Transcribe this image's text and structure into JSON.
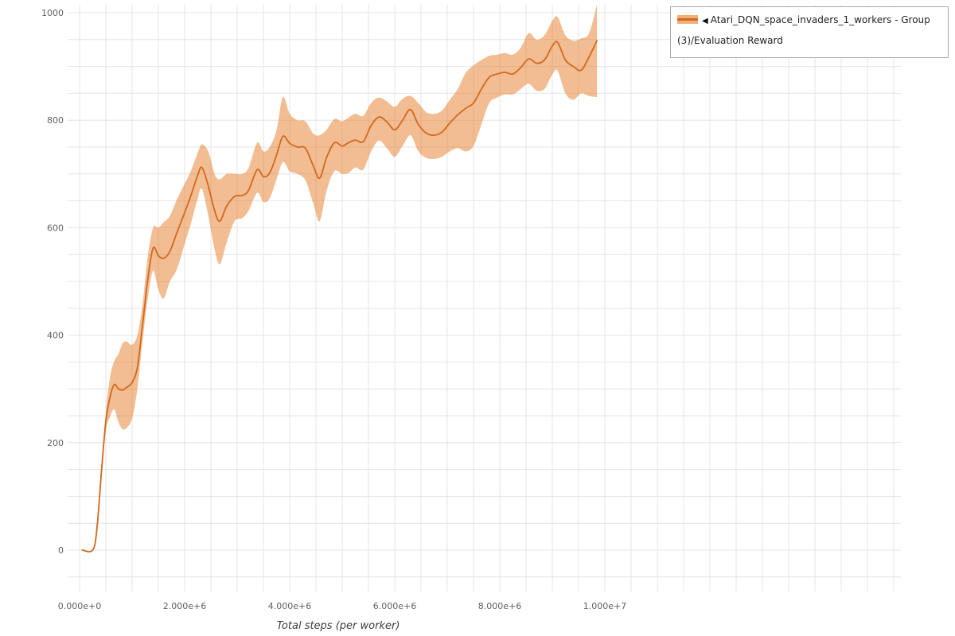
{
  "legend": {
    "collapse_marker": "◀",
    "series_label": "Atari_DQN_space_invaders_1_workers - Group(3)/Evaluation Reward"
  },
  "axes": {
    "x_title": "Total steps (per worker)"
  },
  "chart_data": {
    "type": "line",
    "title": "",
    "xlabel": "Total steps (per worker)",
    "ylabel": "",
    "grid": true,
    "grid_color": "#e4e4e4",
    "tick_color": "#5f5f5f",
    "legend_position": "top-right",
    "x_range_millions": [
      0,
      10
    ],
    "ylim": [
      0,
      1000
    ],
    "x_ticks": {
      "values_millions": [
        0,
        2,
        4,
        6,
        8,
        10
      ],
      "labels": [
        "0.000e+0",
        "2.000e+6",
        "4.000e+6",
        "6.000e+6",
        "8.000e+6",
        "1.000e+7"
      ]
    },
    "y_ticks": {
      "values": [
        0,
        200,
        400,
        600,
        800,
        1000
      ],
      "labels": [
        "0",
        "200",
        "400",
        "600",
        "800",
        "1000"
      ]
    },
    "series": [
      {
        "name": "Atari_DQN_space_invaders_1_workers - Group(3)/Evaluation Reward",
        "color": "#d2691e",
        "band_color": "#e57b25",
        "band_opacity": 0.5,
        "x_millions": [
          0.05,
          0.25,
          0.33,
          0.42,
          0.5,
          0.58,
          0.66,
          0.74,
          0.82,
          0.9,
          1.0,
          1.1,
          1.2,
          1.3,
          1.4,
          1.5,
          1.6,
          1.72,
          1.85,
          2.0,
          2.12,
          2.25,
          2.33,
          2.45,
          2.57,
          2.67,
          2.8,
          2.95,
          3.1,
          3.22,
          3.38,
          3.5,
          3.62,
          3.75,
          3.87,
          4.0,
          4.15,
          4.3,
          4.45,
          4.57,
          4.7,
          4.85,
          5.0,
          5.12,
          5.25,
          5.4,
          5.55,
          5.7,
          5.85,
          6.0,
          6.15,
          6.3,
          6.45,
          6.6,
          6.75,
          6.9,
          7.05,
          7.2,
          7.35,
          7.5,
          7.65,
          7.8,
          7.95,
          8.1,
          8.25,
          8.4,
          8.55,
          8.7,
          8.85,
          9.0,
          9.1,
          9.25,
          9.4,
          9.55,
          9.7,
          9.85
        ],
        "mean": [
          0,
          0,
          40,
          150,
          240,
          285,
          308,
          300,
          298,
          303,
          312,
          340,
          420,
          505,
          562,
          548,
          543,
          556,
          590,
          628,
          660,
          698,
          712,
          678,
          632,
          612,
          640,
          658,
          660,
          670,
          708,
          695,
          702,
          735,
          770,
          757,
          750,
          748,
          715,
          692,
          730,
          758,
          752,
          758,
          763,
          760,
          790,
          806,
          797,
          782,
          800,
          820,
          792,
          776,
          772,
          778,
          795,
          810,
          822,
          832,
          858,
          880,
          886,
          889,
          886,
          898,
          914,
          906,
          912,
          938,
          945,
          912,
          900,
          893,
          918,
          948
        ],
        "band_low": [
          0,
          0,
          30,
          135,
          222,
          248,
          262,
          238,
          225,
          228,
          245,
          300,
          390,
          470,
          520,
          485,
          468,
          500,
          522,
          570,
          608,
          655,
          672,
          622,
          560,
          532,
          572,
          612,
          618,
          632,
          665,
          648,
          655,
          690,
          722,
          705,
          700,
          688,
          645,
          612,
          668,
          705,
          700,
          702,
          712,
          708,
          742,
          762,
          748,
          732,
          752,
          772,
          742,
          730,
          728,
          732,
          742,
          748,
          742,
          752,
          792,
          832,
          842,
          848,
          848,
          858,
          868,
          855,
          858,
          885,
          892,
          850,
          838,
          850,
          845,
          843
        ],
        "band_high": [
          0,
          0,
          52,
          165,
          258,
          322,
          352,
          365,
          385,
          388,
          382,
          400,
          458,
          548,
          600,
          600,
          610,
          622,
          652,
          682,
          706,
          740,
          755,
          742,
          700,
          690,
          700,
          700,
          700,
          712,
          758,
          742,
          750,
          782,
          843,
          812,
          800,
          798,
          775,
          772,
          782,
          802,
          798,
          805,
          812,
          808,
          832,
          842,
          835,
          825,
          840,
          845,
          832,
          815,
          812,
          818,
          838,
          858,
          888,
          902,
          912,
          920,
          922,
          925,
          922,
          935,
          962,
          950,
          958,
          985,
          992,
          958,
          948,
          952,
          962,
          1015
        ]
      }
    ]
  }
}
